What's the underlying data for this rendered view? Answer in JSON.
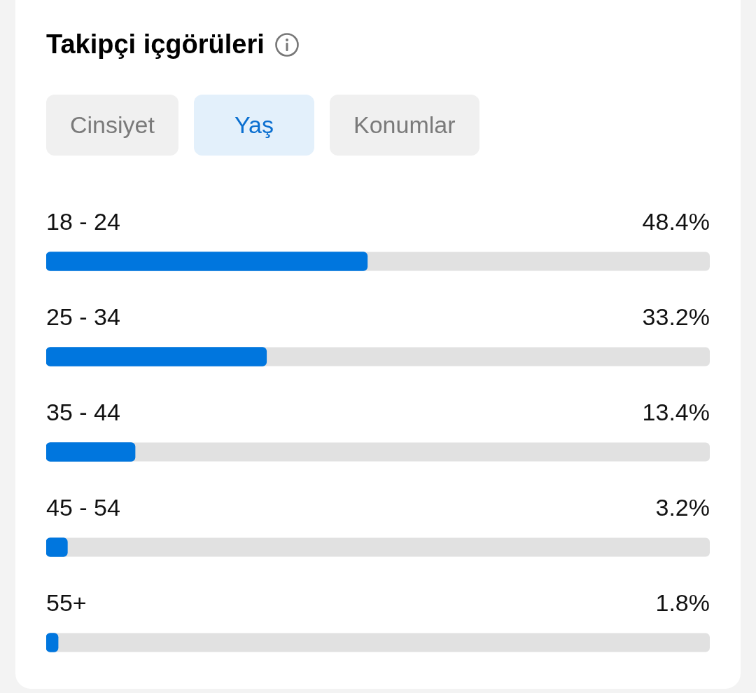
{
  "chart_data": {
    "type": "bar",
    "orientation": "horizontal",
    "title": "Takipçi içgörüleri",
    "annotations": [
      "Cinsiyet",
      "Yaş",
      "Konumlar"
    ],
    "categories": [
      "18 - 24",
      "25 - 34",
      "35 - 44",
      "45 - 54",
      "55+"
    ],
    "values": [
      48.4,
      33.2,
      13.4,
      3.2,
      1.8
    ],
    "value_labels": [
      "48.4%",
      "33.2%",
      "13.4%",
      "3.2%",
      "1.8%"
    ],
    "color": "#0076de",
    "xlim": [
      0,
      100
    ]
  }
}
